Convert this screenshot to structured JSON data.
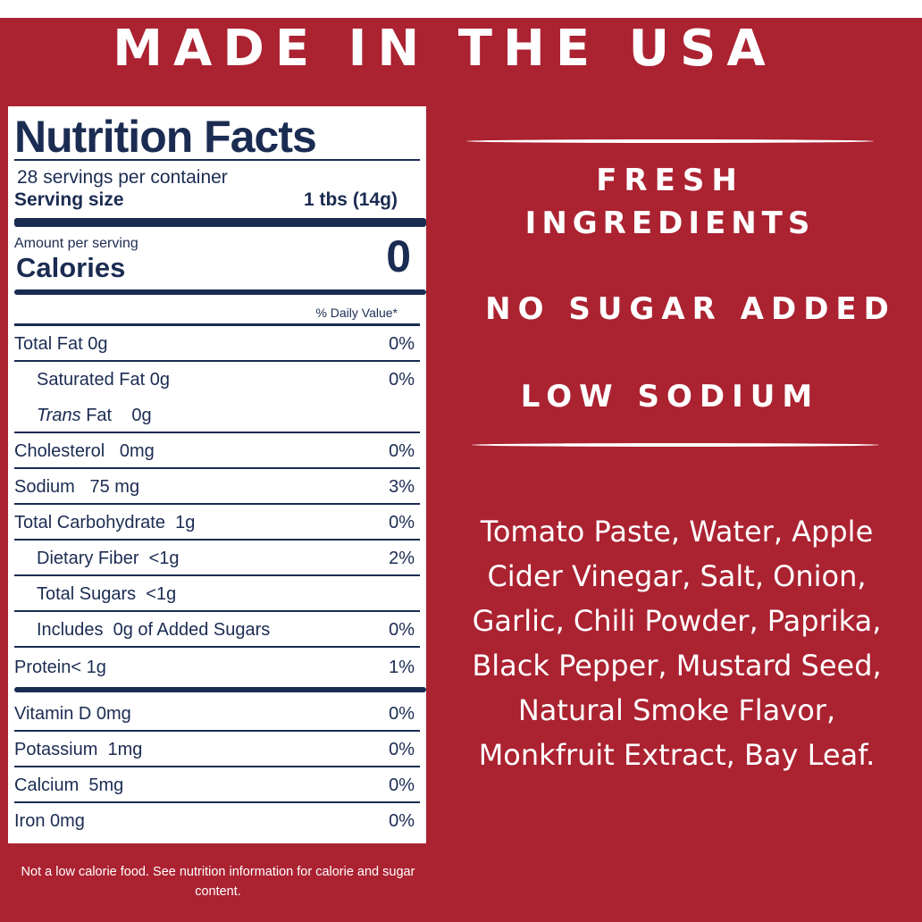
{
  "headline": "MADE IN THE USA",
  "nutrition": {
    "title": "Nutrition Facts",
    "servings_per_container": "28 servings per container",
    "serving_size_label": "Serving size",
    "serving_size_value": "1 tbs  (14g)",
    "amount_per_serving": "Amount per serving",
    "calories_label": "Calories",
    "calories_value": "0",
    "daily_value_header": "% Daily Value*",
    "rows": [
      {
        "label": "Total Fat  0g",
        "pct": "0%"
      },
      {
        "label": "Saturated Fat  0g",
        "pct": "0%"
      },
      {
        "label_italic": "Trans",
        "label_rest": " Fat    0g",
        "pct": ""
      },
      {
        "label": "Cholesterol   0mg",
        "pct": "0%"
      },
      {
        "label": "Sodium   75 mg",
        "pct": "3%"
      },
      {
        "label": "Total Carbohydrate  1g",
        "pct": "0%"
      },
      {
        "label": "Dietary Fiber  <1g",
        "pct": "2%"
      },
      {
        "label": "Total Sugars  <1g",
        "pct": ""
      },
      {
        "label": "Includes  0g of Added Sugars",
        "pct": "0%"
      },
      {
        "label": "Protein< 1g",
        "pct": "1%"
      },
      {
        "label": "Vitamin D 0mg",
        "pct": "0%"
      },
      {
        "label": "Potassium  1mg",
        "pct": "0%"
      },
      {
        "label": "Calcium  5mg",
        "pct": "0%"
      },
      {
        "label": "Iron 0mg",
        "pct": "0%"
      }
    ]
  },
  "claims": {
    "fresh_line1": "FRESH",
    "fresh_line2": "INGREDIENTS",
    "no_sugar": "NO SUGAR ADDED",
    "low_sodium": "LOW SODIUM"
  },
  "ingredients": "Tomato Paste, Water, Apple Cider Vinegar, Salt, Onion, Garlic, Chili Powder, Paprika, Black Pepper, Mustard Seed, Natural Smoke Flavor, Monkfruit Extract, Bay Leaf.",
  "footnote": "Not a low calorie food. See nutrition information for calorie and sugar content.",
  "colors": {
    "background": "#ab2231",
    "label_text": "#1b2c52",
    "panel": "#ffffff"
  }
}
